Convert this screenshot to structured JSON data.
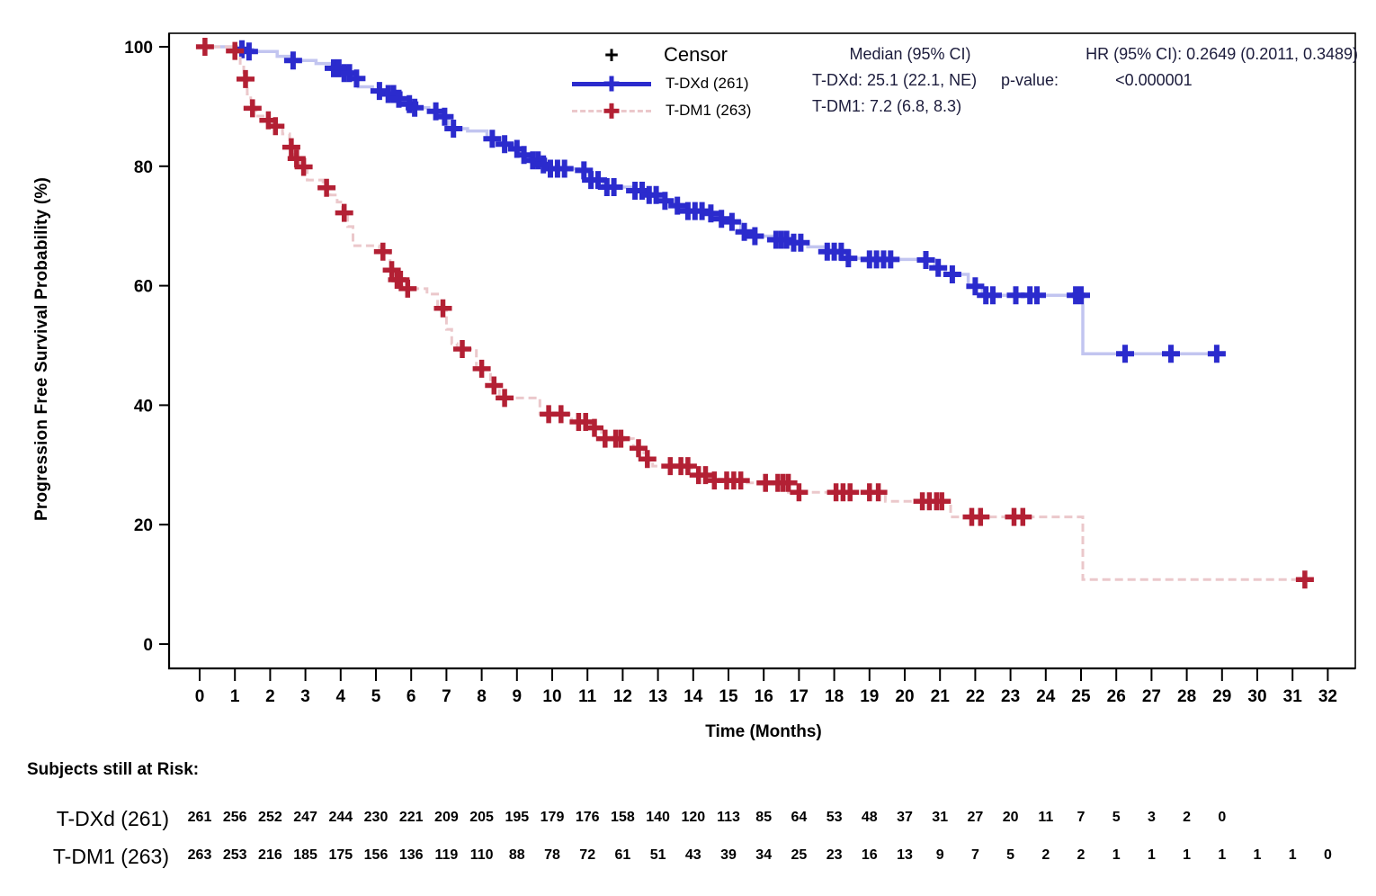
{
  "chart_data": {
    "type": "line",
    "subtype": "kaplan-meier-step",
    "title": "",
    "xlabel": "Time (Months)",
    "ylabel": "Progression Free Survival Probability (%)",
    "xlim": [
      0,
      32
    ],
    "ylim": [
      0,
      100
    ],
    "x_ticks": [
      0,
      1,
      2,
      3,
      4,
      5,
      6,
      7,
      8,
      9,
      10,
      11,
      12,
      13,
      14,
      15,
      16,
      17,
      18,
      19,
      20,
      21,
      22,
      23,
      24,
      25,
      26,
      27,
      28,
      29,
      30,
      31,
      32
    ],
    "y_ticks": [
      0,
      20,
      40,
      60,
      80,
      100
    ],
    "grid": false,
    "legend": {
      "position": "top-center",
      "censor_symbol": "+",
      "censor_label": "Censor"
    },
    "series": [
      {
        "name": "T-DXd (261)",
        "color": "#2b2bcd",
        "line_color": "#c2c5f0",
        "dashed": false,
        "steps": [
          [
            0,
            100
          ],
          [
            1.05,
            99.6
          ],
          [
            1.5,
            99.2
          ],
          [
            2.2,
            98.4
          ],
          [
            2.6,
            97.7
          ],
          [
            3.3,
            97.2
          ],
          [
            3.75,
            96.4
          ],
          [
            4.0,
            95.6
          ],
          [
            4.3,
            94.7
          ],
          [
            4.5,
            93.3
          ],
          [
            4.9,
            92.6
          ],
          [
            5.3,
            92.1
          ],
          [
            5.6,
            91.3
          ],
          [
            5.8,
            90.4
          ],
          [
            6.0,
            89.8
          ],
          [
            6.5,
            89.2
          ],
          [
            6.85,
            88.3
          ],
          [
            7.05,
            86.3
          ],
          [
            7.6,
            85.9
          ],
          [
            8.15,
            84.6
          ],
          [
            8.5,
            83.7
          ],
          [
            8.9,
            82.9
          ],
          [
            9.1,
            81.9
          ],
          [
            9.35,
            81.0
          ],
          [
            9.6,
            80.3
          ],
          [
            9.85,
            79.6
          ],
          [
            10.75,
            79.3
          ],
          [
            11.05,
            77.7
          ],
          [
            11.45,
            76.5
          ],
          [
            12.25,
            75.9
          ],
          [
            12.65,
            75.2
          ],
          [
            13.0,
            74.2
          ],
          [
            13.4,
            73.4
          ],
          [
            13.75,
            72.5
          ],
          [
            14.35,
            72.1
          ],
          [
            14.7,
            71.2
          ],
          [
            15.0,
            70.7
          ],
          [
            15.35,
            69.0
          ],
          [
            15.65,
            68.3
          ],
          [
            16.3,
            67.7
          ],
          [
            16.75,
            67.2
          ],
          [
            17.25,
            66.5
          ],
          [
            17.85,
            65.7
          ],
          [
            18.35,
            64.6
          ],
          [
            19.2,
            64.4
          ],
          [
            20.4,
            64.3
          ],
          [
            20.85,
            63.0
          ],
          [
            21.15,
            61.9
          ],
          [
            21.8,
            59.9
          ],
          [
            22.2,
            58.4
          ],
          [
            25.05,
            48.6
          ],
          [
            29.05,
            48.6
          ]
        ],
        "censors": [
          [
            1.2,
            99.6
          ],
          [
            1.4,
            99.2
          ],
          [
            2.65,
            97.7
          ],
          [
            3.8,
            96.4
          ],
          [
            3.95,
            96.4
          ],
          [
            4.1,
            95.6
          ],
          [
            4.25,
            95.6
          ],
          [
            4.45,
            94.7
          ],
          [
            5.1,
            92.6
          ],
          [
            5.35,
            92.1
          ],
          [
            5.5,
            92.1
          ],
          [
            5.65,
            91.3
          ],
          [
            5.95,
            90.4
          ],
          [
            6.1,
            89.8
          ],
          [
            6.7,
            89.2
          ],
          [
            6.95,
            88.3
          ],
          [
            7.2,
            86.3
          ],
          [
            8.3,
            84.6
          ],
          [
            8.65,
            83.7
          ],
          [
            9.0,
            82.9
          ],
          [
            9.2,
            81.9
          ],
          [
            9.45,
            81.0
          ],
          [
            9.6,
            81.0
          ],
          [
            9.75,
            80.3
          ],
          [
            9.95,
            79.6
          ],
          [
            10.15,
            79.6
          ],
          [
            10.35,
            79.6
          ],
          [
            10.9,
            79.3
          ],
          [
            11.1,
            77.7
          ],
          [
            11.3,
            77.7
          ],
          [
            11.55,
            76.5
          ],
          [
            11.75,
            76.5
          ],
          [
            12.35,
            75.9
          ],
          [
            12.55,
            75.9
          ],
          [
            12.75,
            75.2
          ],
          [
            12.95,
            75.2
          ],
          [
            13.2,
            74.2
          ],
          [
            13.55,
            73.4
          ],
          [
            13.85,
            72.5
          ],
          [
            14.05,
            72.5
          ],
          [
            14.25,
            72.5
          ],
          [
            14.5,
            72.1
          ],
          [
            14.8,
            71.2
          ],
          [
            15.1,
            70.7
          ],
          [
            15.45,
            69.0
          ],
          [
            15.75,
            68.3
          ],
          [
            16.35,
            67.7
          ],
          [
            16.5,
            67.7
          ],
          [
            16.65,
            67.7
          ],
          [
            16.85,
            67.2
          ],
          [
            17.05,
            67.2
          ],
          [
            17.8,
            65.7
          ],
          [
            18.0,
            65.7
          ],
          [
            18.2,
            65.7
          ],
          [
            18.4,
            64.6
          ],
          [
            19.0,
            64.4
          ],
          [
            19.2,
            64.4
          ],
          [
            19.4,
            64.4
          ],
          [
            19.6,
            64.4
          ],
          [
            20.6,
            64.3
          ],
          [
            20.95,
            63.0
          ],
          [
            21.35,
            61.9
          ],
          [
            22.0,
            59.9
          ],
          [
            22.3,
            58.4
          ],
          [
            22.5,
            58.4
          ],
          [
            23.15,
            58.4
          ],
          [
            23.55,
            58.4
          ],
          [
            23.75,
            58.4
          ],
          [
            24.85,
            58.4
          ],
          [
            25.0,
            58.4
          ],
          [
            26.25,
            48.6
          ],
          [
            27.55,
            48.6
          ],
          [
            28.85,
            48.6
          ]
        ]
      },
      {
        "name": "T-DM1 (263)",
        "color": "#b32034",
        "line_color": "#ebc8cb",
        "dashed": true,
        "steps": [
          [
            0,
            100
          ],
          [
            0.9,
            99.3
          ],
          [
            1.15,
            97.0
          ],
          [
            1.25,
            94.6
          ],
          [
            1.35,
            92.1
          ],
          [
            1.45,
            89.7
          ],
          [
            1.6,
            88.4
          ],
          [
            1.9,
            87.7
          ],
          [
            2.1,
            86.7
          ],
          [
            2.35,
            85.4
          ],
          [
            2.55,
            83.2
          ],
          [
            2.7,
            81.3
          ],
          [
            2.85,
            79.9
          ],
          [
            3.05,
            77.7
          ],
          [
            3.5,
            76.4
          ],
          [
            3.7,
            75.2
          ],
          [
            3.9,
            74.0
          ],
          [
            4.05,
            72.2
          ],
          [
            4.2,
            69.9
          ],
          [
            4.35,
            66.7
          ],
          [
            5.1,
            65.7
          ],
          [
            5.4,
            62.6
          ],
          [
            5.55,
            61.0
          ],
          [
            5.75,
            59.5
          ],
          [
            6.45,
            58.6
          ],
          [
            6.75,
            56.2
          ],
          [
            7.0,
            52.7
          ],
          [
            7.15,
            50.3
          ],
          [
            7.3,
            49.4
          ],
          [
            7.85,
            46.1
          ],
          [
            8.25,
            43.3
          ],
          [
            8.5,
            41.2
          ],
          [
            9.65,
            38.5
          ],
          [
            10.55,
            37.2
          ],
          [
            11.1,
            36.2
          ],
          [
            11.4,
            34.4
          ],
          [
            12.3,
            32.8
          ],
          [
            12.6,
            31.0
          ],
          [
            12.85,
            29.8
          ],
          [
            13.95,
            28.3
          ],
          [
            14.45,
            27.4
          ],
          [
            15.45,
            27.0
          ],
          [
            16.7,
            25.4
          ],
          [
            19.45,
            23.9
          ],
          [
            21.3,
            21.3
          ],
          [
            25.05,
            10.8
          ],
          [
            31.4,
            10.8
          ]
        ],
        "censors": [
          [
            0.15,
            100
          ],
          [
            1.0,
            99.3
          ],
          [
            1.3,
            94.6
          ],
          [
            1.5,
            89.7
          ],
          [
            1.95,
            87.7
          ],
          [
            2.15,
            86.7
          ],
          [
            2.6,
            83.2
          ],
          [
            2.75,
            81.3
          ],
          [
            2.95,
            79.9
          ],
          [
            3.6,
            76.4
          ],
          [
            4.1,
            72.2
          ],
          [
            5.2,
            65.7
          ],
          [
            5.45,
            62.6
          ],
          [
            5.6,
            61.0
          ],
          [
            5.7,
            61.0
          ],
          [
            5.9,
            59.5
          ],
          [
            6.9,
            56.2
          ],
          [
            7.45,
            49.4
          ],
          [
            8.0,
            46.1
          ],
          [
            8.35,
            43.3
          ],
          [
            8.65,
            41.2
          ],
          [
            9.9,
            38.5
          ],
          [
            10.25,
            38.5
          ],
          [
            10.75,
            37.2
          ],
          [
            10.95,
            37.2
          ],
          [
            11.2,
            36.2
          ],
          [
            11.5,
            34.4
          ],
          [
            11.8,
            34.4
          ],
          [
            11.95,
            34.4
          ],
          [
            12.45,
            32.8
          ],
          [
            12.7,
            31.0
          ],
          [
            13.35,
            29.8
          ],
          [
            13.65,
            29.8
          ],
          [
            13.85,
            29.8
          ],
          [
            14.15,
            28.3
          ],
          [
            14.35,
            28.3
          ],
          [
            14.6,
            27.4
          ],
          [
            14.95,
            27.4
          ],
          [
            15.15,
            27.4
          ],
          [
            15.35,
            27.4
          ],
          [
            16.05,
            27.0
          ],
          [
            16.4,
            27.0
          ],
          [
            16.55,
            27.0
          ],
          [
            16.7,
            27.0
          ],
          [
            17.0,
            25.4
          ],
          [
            18.05,
            25.4
          ],
          [
            18.25,
            25.4
          ],
          [
            18.45,
            25.4
          ],
          [
            19.0,
            25.4
          ],
          [
            19.25,
            25.4
          ],
          [
            20.5,
            23.9
          ],
          [
            20.7,
            23.9
          ],
          [
            20.9,
            23.9
          ],
          [
            21.05,
            23.9
          ],
          [
            21.9,
            21.3
          ],
          [
            22.15,
            21.3
          ],
          [
            23.1,
            21.3
          ],
          [
            23.35,
            21.3
          ],
          [
            31.35,
            10.8
          ]
        ]
      }
    ],
    "annotations": {
      "median_header": "Median (95% CI)",
      "median_lines": [
        "T-DXd: 25.1 (22.1, NE)",
        "T-DM1: 7.2 (6.8, 8.3)"
      ],
      "hr_line": "HR (95% CI): 0.2649 (0.2011, 0.3489)",
      "pvalue_label": "p-value:",
      "pvalue_value": "<0.000001"
    },
    "risk_table": {
      "header": "Subjects still at Risk:",
      "rows": [
        {
          "label": "T-DXd (261)",
          "values": [
            261,
            256,
            252,
            247,
            244,
            230,
            221,
            209,
            205,
            195,
            179,
            176,
            158,
            140,
            120,
            113,
            85,
            64,
            53,
            48,
            37,
            31,
            27,
            20,
            11,
            7,
            5,
            3,
            2,
            0
          ]
        },
        {
          "label": "T-DM1 (263)",
          "values": [
            263,
            253,
            216,
            185,
            175,
            156,
            136,
            119,
            110,
            88,
            78,
            72,
            61,
            51,
            43,
            39,
            34,
            25,
            23,
            16,
            13,
            9,
            7,
            5,
            2,
            2,
            1,
            1,
            1,
            1,
            1,
            1,
            0
          ]
        }
      ]
    }
  }
}
